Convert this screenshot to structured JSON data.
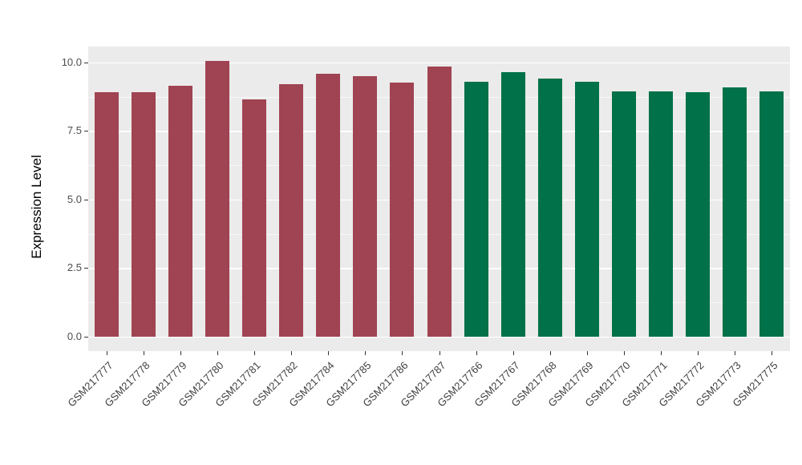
{
  "chart_data": {
    "type": "bar",
    "title": "",
    "xlabel": "",
    "ylabel": "Expression Level",
    "ylim": [
      0,
      10.58
    ],
    "grid": "on",
    "legend": "none",
    "yticks": [
      0.0,
      2.5,
      5.0,
      7.5,
      10.0
    ],
    "ytick_labels": [
      "0.0",
      "2.5",
      "5.0",
      "7.5",
      "10.0"
    ],
    "categories": [
      "GSM217777",
      "GSM217778",
      "GSM217779",
      "GSM217780",
      "GSM217781",
      "GSM217782",
      "GSM217784",
      "GSM217785",
      "GSM217786",
      "GSM217787",
      "GSM217766",
      "GSM217767",
      "GSM217768",
      "GSM217769",
      "GSM217770",
      "GSM217771",
      "GSM217772",
      "GSM217773",
      "GSM217775"
    ],
    "values": [
      8.9,
      8.9,
      9.15,
      10.05,
      8.65,
      9.2,
      9.6,
      9.5,
      9.25,
      9.85,
      9.3,
      9.65,
      9.4,
      9.3,
      8.95,
      8.95,
      8.9,
      9.1,
      8.95
    ],
    "bar_colors": [
      "#A04352",
      "#A04352",
      "#A04352",
      "#A04352",
      "#A04352",
      "#A04352",
      "#A04352",
      "#A04352",
      "#A04352",
      "#A04352",
      "#007148",
      "#007148",
      "#007148",
      "#007148",
      "#007148",
      "#007148",
      "#007148",
      "#007148",
      "#007148"
    ]
  },
  "colors": {
    "panel_background": "#EBEBEB",
    "grid_major": "#FFFFFF",
    "grid_minor": "#FFFFFF",
    "bar_group_1": "#A04352",
    "bar_group_2": "#007148",
    "axis_text": "#4D4D4D",
    "tick_mark": "#333333"
  }
}
